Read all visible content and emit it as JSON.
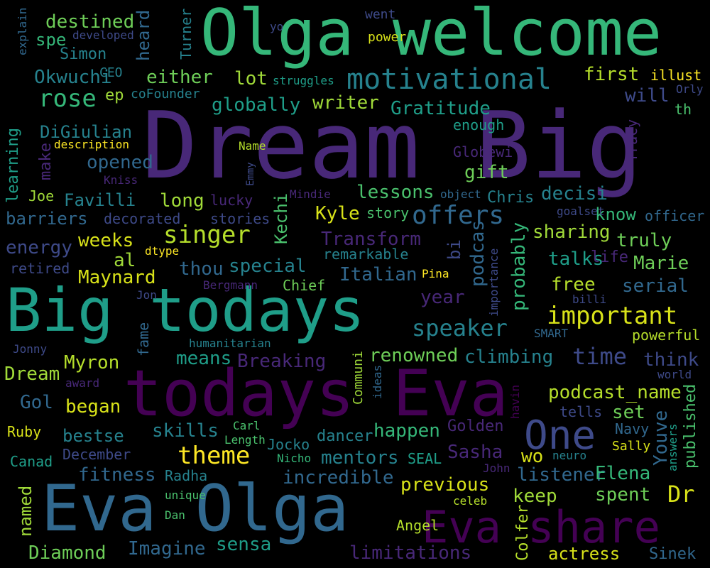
{
  "words": [
    {
      "text": "Dream Big",
      "color": "#482878"
    },
    {
      "text": "Olga welcome",
      "color": "#35b779"
    },
    {
      "text": "Big todays",
      "color": "#1f9e89"
    },
    {
      "text": "todays Eva",
      "color": "#440154"
    },
    {
      "text": "Eva Olga",
      "color": "#31688e"
    },
    {
      "text": "Eva share",
      "color": "#440154"
    },
    {
      "text": "motivational",
      "color": "#26828e"
    },
    {
      "text": "One",
      "color": "#3e4a89"
    },
    {
      "text": "singer",
      "color": "#b5de2b"
    },
    {
      "text": "offers",
      "color": "#31688e"
    },
    {
      "text": "important",
      "color": "#d8e219"
    },
    {
      "text": "speaker",
      "color": "#26828e"
    },
    {
      "text": "theme",
      "color": "#fde725"
    },
    {
      "text": "rose",
      "color": "#35b779"
    },
    {
      "text": "destined",
      "color": "#6ece58"
    },
    {
      "text": "Okwuchi",
      "color": "#26828e"
    },
    {
      "text": "either",
      "color": "#6ece58"
    },
    {
      "text": "lot",
      "color": "#a0da39"
    },
    {
      "text": "globally",
      "color": "#1f9e89"
    },
    {
      "text": "writer",
      "color": "#a0da39"
    },
    {
      "text": "Gratitude",
      "color": "#1f9e89"
    },
    {
      "text": "first",
      "color": "#b5de2b"
    },
    {
      "text": "illust",
      "color": "#fde725"
    },
    {
      "text": "will",
      "color": "#3e4a89"
    },
    {
      "text": "th",
      "color": "#4ac16d"
    },
    {
      "text": "Orly",
      "color": "#3e4a89"
    },
    {
      "text": "DiGiulian",
      "color": "#26828e"
    },
    {
      "text": "opened",
      "color": "#31688e"
    },
    {
      "text": "gift",
      "color": "#6ece58"
    },
    {
      "text": "enough",
      "color": "#1f9e89"
    },
    {
      "text": "Globewi",
      "color": "#482878"
    },
    {
      "text": "Favilli",
      "color": "#26828e"
    },
    {
      "text": "long",
      "color": "#a0da39"
    },
    {
      "text": "lucky",
      "color": "#482878"
    },
    {
      "text": "lessons",
      "color": "#4ac16d"
    },
    {
      "text": "Chris",
      "color": "#26828e"
    },
    {
      "text": "decisi",
      "color": "#26828e"
    },
    {
      "text": "barriers",
      "color": "#31688e"
    },
    {
      "text": "decorated",
      "color": "#3e4a89"
    },
    {
      "text": "stories",
      "color": "#3e4a89"
    },
    {
      "text": "Kyle",
      "color": "#d8e219"
    },
    {
      "text": "story",
      "color": "#4ac16d"
    },
    {
      "text": "know",
      "color": "#35b779"
    },
    {
      "text": "officer",
      "color": "#31688e"
    },
    {
      "text": "weeks",
      "color": "#d8e219"
    },
    {
      "text": "Transform",
      "color": "#482878"
    },
    {
      "text": "sharing",
      "color": "#a0da39"
    },
    {
      "text": "truly",
      "color": "#6ece58"
    },
    {
      "text": "energy",
      "color": "#3e4a89"
    },
    {
      "text": "al",
      "color": "#a0da39"
    },
    {
      "text": "remarkable",
      "color": "#26828e"
    },
    {
      "text": "talks",
      "color": "#1f9e89"
    },
    {
      "text": "life",
      "color": "#482878"
    },
    {
      "text": "Marie",
      "color": "#6ece58"
    },
    {
      "text": "retired",
      "color": "#3e4a89"
    },
    {
      "text": "dtype",
      "color": "#fde725"
    },
    {
      "text": "thou",
      "color": "#31688e"
    },
    {
      "text": "special",
      "color": "#26828e"
    },
    {
      "text": "Maynard",
      "color": "#d8e219"
    },
    {
      "text": "Italian",
      "color": "#31688e"
    },
    {
      "text": "Pina",
      "color": "#fde725"
    },
    {
      "text": "free",
      "color": "#b5de2b"
    },
    {
      "text": "serial",
      "color": "#31688e"
    },
    {
      "text": "Jon",
      "color": "#3e4a89"
    },
    {
      "text": "Bergmann",
      "color": "#482878"
    },
    {
      "text": "Chief",
      "color": "#6ece58"
    },
    {
      "text": "year",
      "color": "#482878"
    },
    {
      "text": "billi",
      "color": "#3e4a89"
    },
    {
      "text": "powerful",
      "color": "#b5de2b"
    },
    {
      "text": "SMART",
      "color": "#31688e"
    },
    {
      "text": "time",
      "color": "#3e4a89"
    },
    {
      "text": "think",
      "color": "#3e4a89"
    },
    {
      "text": "Jonny",
      "color": "#3e4a89"
    },
    {
      "text": "humanitarian",
      "color": "#26828e"
    },
    {
      "text": "renowned",
      "color": "#6ece58"
    },
    {
      "text": "climbing",
      "color": "#26828e"
    },
    {
      "text": "Myron",
      "color": "#b5de2b"
    },
    {
      "text": "means",
      "color": "#1f9e89"
    },
    {
      "text": "Breaking",
      "color": "#482878"
    },
    {
      "text": "world",
      "color": "#3e4a89"
    },
    {
      "text": "Dream",
      "color": "#a0da39"
    },
    {
      "text": "award",
      "color": "#482878"
    },
    {
      "text": "podcast_name",
      "color": "#b5de2b"
    },
    {
      "text": "Gol",
      "color": "#31688e"
    },
    {
      "text": "began",
      "color": "#d8e219"
    },
    {
      "text": "set",
      "color": "#6ece58"
    },
    {
      "text": "tells",
      "color": "#3e4a89"
    },
    {
      "text": "skills",
      "color": "#26828e"
    },
    {
      "text": "Carl",
      "color": "#4ac16d"
    },
    {
      "text": "Length",
      "color": "#4ac16d"
    },
    {
      "text": "happen",
      "color": "#35b779"
    },
    {
      "text": "Golden",
      "color": "#482878"
    },
    {
      "text": "Navy",
      "color": "#31688e"
    },
    {
      "text": "Ruby",
      "color": "#d8e219"
    },
    {
      "text": "bestse",
      "color": "#26828e"
    },
    {
      "text": "Jocko",
      "color": "#26828e"
    },
    {
      "text": "dancer",
      "color": "#26828e"
    },
    {
      "text": "December",
      "color": "#3e4a89"
    },
    {
      "text": "mentors",
      "color": "#26828e"
    },
    {
      "text": "Sasha",
      "color": "#482878"
    },
    {
      "text": "wo",
      "color": "#d8e219"
    },
    {
      "text": "neuro",
      "color": "#26828e"
    },
    {
      "text": "Sally",
      "color": "#d8e219"
    },
    {
      "text": "Canad",
      "color": "#1f9e89"
    },
    {
      "text": "Nicho",
      "color": "#35b779"
    },
    {
      "text": "SEAL",
      "color": "#1f9e89"
    },
    {
      "text": "fitness",
      "color": "#31688e"
    },
    {
      "text": "Radha",
      "color": "#26828e"
    },
    {
      "text": "incredible",
      "color": "#31688e"
    },
    {
      "text": "John",
      "color": "#482878"
    },
    {
      "text": "listener",
      "color": "#31688e"
    },
    {
      "text": "Elena",
      "color": "#35b779"
    },
    {
      "text": "previous",
      "color": "#d8e219"
    },
    {
      "text": "Dr",
      "color": "#d8e219"
    },
    {
      "text": "unique",
      "color": "#4ac16d"
    },
    {
      "text": "keep",
      "color": "#a0da39"
    },
    {
      "text": "spent",
      "color": "#6ece58"
    },
    {
      "text": "Dan",
      "color": "#4ac16d"
    },
    {
      "text": "celeb",
      "color": "#b5de2b"
    },
    {
      "text": "Angel",
      "color": "#b5de2b"
    },
    {
      "text": "Diamond",
      "color": "#6ece58"
    },
    {
      "text": "Imagine",
      "color": "#31688e"
    },
    {
      "text": "sensa",
      "color": "#1f9e89"
    },
    {
      "text": "limitations",
      "color": "#482878"
    },
    {
      "text": "actress",
      "color": "#d8e219"
    },
    {
      "text": "Sinek",
      "color": "#31688e"
    },
    {
      "text": "ep",
      "color": "#a0da39"
    },
    {
      "text": "coFounder",
      "color": "#26828e"
    },
    {
      "text": "CEO",
      "color": "#26828e"
    },
    {
      "text": "spe",
      "color": "#35b779"
    },
    {
      "text": "Simon",
      "color": "#26828e"
    },
    {
      "text": "developed",
      "color": "#3e4a89"
    },
    {
      "text": "went",
      "color": "#3e4a89"
    },
    {
      "text": "yo",
      "color": "#3e4a89"
    },
    {
      "text": "power",
      "color": "#d8e219"
    },
    {
      "text": "struggles",
      "color": "#1f9e89"
    },
    {
      "text": "description",
      "color": "#fde725"
    },
    {
      "text": "Name",
      "color": "#b5de2b"
    },
    {
      "text": "Kniss",
      "color": "#482878"
    },
    {
      "text": "Joe",
      "color": "#a0da39"
    },
    {
      "text": "Mindie",
      "color": "#482878"
    },
    {
      "text": "object",
      "color": "#31688e"
    },
    {
      "text": "goalset",
      "color": "#3e4a89"
    },
    {
      "text": "explain",
      "color": "#31688e"
    },
    {
      "text": "heard",
      "color": "#31688e"
    },
    {
      "text": "Turner",
      "color": "#26828e"
    },
    {
      "text": "learning",
      "color": "#1f9e89"
    },
    {
      "text": "make",
      "color": "#482878"
    },
    {
      "text": "Emmy",
      "color": "#3e4a89"
    },
    {
      "text": "Kechi",
      "color": "#4ac16d"
    },
    {
      "text": "bi",
      "color": "#3e4a89"
    },
    {
      "text": "podcas",
      "color": "#31688e"
    },
    {
      "text": "probably",
      "color": "#35b779"
    },
    {
      "text": "importance",
      "color": "#3e4a89"
    },
    {
      "text": "Tracy",
      "color": "#482878"
    },
    {
      "text": "fame",
      "color": "#31688e"
    },
    {
      "text": "Communi",
      "color": "#a0da39"
    },
    {
      "text": "ideas",
      "color": "#31688e"
    },
    {
      "text": "havin",
      "color": "#440154"
    },
    {
      "text": "Youve",
      "color": "#31688e"
    },
    {
      "text": "answers",
      "color": "#1f9e89"
    },
    {
      "text": "published",
      "color": "#4ac16d"
    },
    {
      "text": "named",
      "color": "#a0da39"
    },
    {
      "text": "Colfer",
      "color": "#b5de2b"
    }
  ]
}
